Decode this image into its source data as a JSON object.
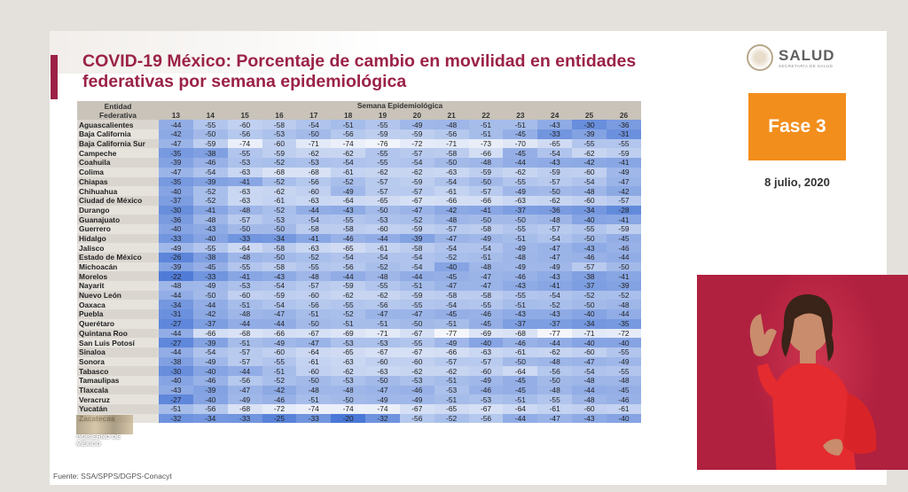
{
  "title": "COVID-19 México: Porcentaje de cambio en movilidad en entidades federativas por semana epidemiológica",
  "logo": {
    "name": "SALUD",
    "subtitle": "SECRETARÍA DE SALUD"
  },
  "fase": "Fase 3",
  "date": "8 julio, 2020",
  "table": {
    "entity_header": "Entidad Federativa",
    "week_header": "Semana Epidemiológica",
    "weeks": [
      "13",
      "14",
      "15",
      "16",
      "17",
      "18",
      "19",
      "20",
      "21",
      "22",
      "23",
      "24",
      "25",
      "26"
    ],
    "rows": [
      {
        "name": "Aguascalientes",
        "values": [
          -44,
          -55,
          -60,
          -58,
          -54,
          -51,
          -55,
          -49,
          -48,
          -51,
          -51,
          -43,
          -30,
          -36
        ]
      },
      {
        "name": "Baja California",
        "values": [
          -42,
          -50,
          -56,
          -53,
          -50,
          -56,
          -59,
          -59,
          -56,
          -51,
          -45,
          -33,
          -39,
          -31
        ]
      },
      {
        "name": "Baja California Sur",
        "values": [
          -47,
          -59,
          -74,
          -60,
          -71,
          -74,
          -76,
          -72,
          -71,
          -73,
          -70,
          -65,
          -55,
          -55
        ]
      },
      {
        "name": "Campeche",
        "values": [
          -35,
          -38,
          -55,
          -59,
          -62,
          -62,
          -55,
          -57,
          -58,
          -66,
          -45,
          -54,
          -62,
          -59
        ]
      },
      {
        "name": "Coahuila",
        "values": [
          -39,
          -46,
          -53,
          -52,
          -53,
          -54,
          -55,
          -54,
          -50,
          -48,
          -44,
          -43,
          -42,
          -41
        ]
      },
      {
        "name": "Colima",
        "values": [
          -47,
          -54,
          -63,
          -68,
          -68,
          -61,
          -62,
          -62,
          -63,
          -59,
          -62,
          -59,
          -60,
          -49
        ]
      },
      {
        "name": "Chiapas",
        "values": [
          -35,
          -39,
          -41,
          -52,
          -56,
          -52,
          -57,
          -59,
          -54,
          -50,
          -55,
          -57,
          -54,
          -47
        ]
      },
      {
        "name": "Chihuahua",
        "values": [
          -40,
          -52,
          -63,
          -62,
          -60,
          -49,
          -57,
          -57,
          -61,
          -57,
          -49,
          -50,
          -48,
          -42
        ]
      },
      {
        "name": "Ciudad de México",
        "values": [
          -37,
          -52,
          -63,
          -61,
          -63,
          -64,
          -65,
          -67,
          -66,
          -66,
          -63,
          -62,
          -60,
          -57
        ]
      },
      {
        "name": "Durango",
        "values": [
          -30,
          -41,
          -48,
          -52,
          -44,
          -43,
          -50,
          -47,
          -42,
          -41,
          -37,
          -36,
          -34,
          -28
        ]
      },
      {
        "name": "Guanajuato",
        "values": [
          -36,
          -48,
          -57,
          -53,
          -54,
          -55,
          -53,
          -52,
          -48,
          -50,
          -50,
          -48,
          -40,
          -41
        ]
      },
      {
        "name": "Guerrero",
        "values": [
          -40,
          -43,
          -50,
          -50,
          -58,
          -58,
          -60,
          -59,
          -57,
          -58,
          -55,
          -57,
          -55,
          -59
        ]
      },
      {
        "name": "Hidalgo",
        "values": [
          -33,
          -40,
          -33,
          -34,
          -41,
          -46,
          -44,
          -39,
          -47,
          -49,
          -51,
          -54,
          -50,
          -45
        ]
      },
      {
        "name": "Jalisco",
        "values": [
          -49,
          -55,
          -64,
          -58,
          -63,
          -65,
          -61,
          -58,
          -54,
          -54,
          -49,
          -47,
          -43,
          -46
        ]
      },
      {
        "name": "Estado de México",
        "values": [
          -26,
          -38,
          -48,
          -50,
          -52,
          -54,
          -54,
          -54,
          -52,
          -51,
          -48,
          -47,
          -46,
          -44
        ]
      },
      {
        "name": "Michoacán",
        "values": [
          -39,
          -45,
          -55,
          -58,
          -55,
          -56,
          -52,
          -54,
          -40,
          -48,
          -49,
          -49,
          -57,
          -50
        ]
      },
      {
        "name": "Morelos",
        "values": [
          -22,
          -33,
          -41,
          -43,
          -48,
          -44,
          -48,
          -44,
          -45,
          -47,
          -46,
          -43,
          -38,
          -41
        ]
      },
      {
        "name": "Nayarit",
        "values": [
          -48,
          -49,
          -53,
          -54,
          -57,
          -59,
          -55,
          -51,
          -47,
          -47,
          -43,
          -41,
          -37,
          -39
        ]
      },
      {
        "name": "Nuevo León",
        "values": [
          -44,
          -50,
          -60,
          -59,
          -60,
          -62,
          -62,
          -59,
          -58,
          -58,
          -55,
          -54,
          -52,
          -52
        ]
      },
      {
        "name": "Oaxaca",
        "values": [
          -34,
          -44,
          -51,
          -54,
          -56,
          -55,
          -56,
          -55,
          -54,
          -55,
          -51,
          -52,
          -50,
          -48
        ]
      },
      {
        "name": "Puebla",
        "values": [
          -31,
          -42,
          -48,
          -47,
          -51,
          -52,
          -47,
          -47,
          -45,
          -46,
          -43,
          -43,
          -40,
          -44
        ]
      },
      {
        "name": "Querétaro",
        "values": [
          -27,
          -37,
          -44,
          -44,
          -50,
          -51,
          -51,
          -50,
          -51,
          -45,
          -37,
          -37,
          -34,
          -35
        ]
      },
      {
        "name": "Quintana Roo",
        "values": [
          -44,
          -66,
          -68,
          -66,
          -67,
          -69,
          -71,
          -67,
          -77,
          -69,
          -68,
          -77,
          -71,
          -72
        ]
      },
      {
        "name": "San Luis Potosí",
        "values": [
          -27,
          -39,
          -51,
          -49,
          -47,
          -53,
          -53,
          -55,
          -49,
          -40,
          -46,
          -44,
          -40,
          -40
        ]
      },
      {
        "name": "Sinaloa",
        "values": [
          -44,
          -54,
          -57,
          -60,
          -64,
          -65,
          -67,
          -67,
          -66,
          -63,
          -61,
          -62,
          -60,
          -55
        ]
      },
      {
        "name": "Sonora",
        "values": [
          -38,
          -49,
          -57,
          -55,
          -61,
          -63,
          -60,
          -60,
          -57,
          -57,
          -50,
          -48,
          -47,
          -49
        ]
      },
      {
        "name": "Tabasco",
        "values": [
          -30,
          -40,
          -44,
          -51,
          -60,
          -62,
          -63,
          -62,
          -62,
          -60,
          -64,
          -56,
          -54,
          -55
        ]
      },
      {
        "name": "Tamaulipas",
        "values": [
          -40,
          -46,
          -56,
          -52,
          -50,
          -53,
          -50,
          -53,
          -51,
          -49,
          -45,
          -50,
          -48,
          -48
        ]
      },
      {
        "name": "Tlaxcala",
        "values": [
          -43,
          -39,
          -47,
          -42,
          -48,
          -48,
          -47,
          -46,
          -53,
          -46,
          -45,
          -48,
          -44,
          -45
        ]
      },
      {
        "name": "Veracruz",
        "values": [
          -27,
          -40,
          -49,
          -46,
          -51,
          -50,
          -49,
          -49,
          -51,
          -53,
          -51,
          -55,
          -48,
          -46
        ]
      },
      {
        "name": "Yucatán",
        "values": [
          -51,
          -56,
          -68,
          -72,
          -74,
          -74,
          -74,
          -67,
          -65,
          -67,
          -64,
          -61,
          -60,
          -61
        ]
      },
      {
        "name": "Zacatecas",
        "values": [
          -32,
          -34,
          -33,
          -25,
          -33,
          -20,
          -32,
          -56,
          -52,
          -56,
          -44,
          -47,
          -43,
          -40
        ]
      }
    ]
  },
  "source": "Fuente: SSA/SPPS/DGPS-Conacyt",
  "gov_logo": "GOBIERNO DE MÉXICO",
  "colors": {
    "title": "#9b2246",
    "fase": "#f28e1c",
    "cell_high": "#4a78d6",
    "cell_low": "#f4f6fb"
  }
}
